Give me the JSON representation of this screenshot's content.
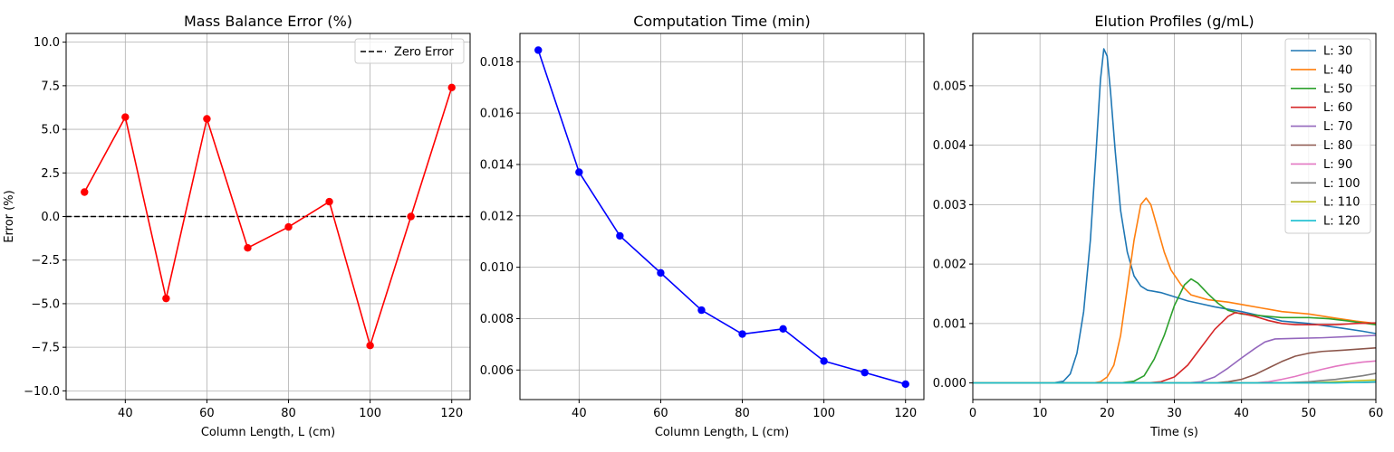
{
  "chart_data": [
    {
      "type": "line",
      "title": "Mass Balance Error (%)",
      "xlabel": "Column Length, L (cm)",
      "ylabel": "Error (%)",
      "xlim": [
        25.5,
        124.5
      ],
      "ylim": [
        -10.5,
        10.5
      ],
      "xticks": [
        40,
        60,
        80,
        100,
        120
      ],
      "yticks": [
        -10.0,
        -7.5,
        -5.0,
        -2.5,
        0.0,
        2.5,
        5.0,
        7.5,
        10.0
      ],
      "ytick_labels": [
        "−10.0",
        "−7.5",
        "−5.0",
        "−2.5",
        "0.0",
        "2.5",
        "5.0",
        "7.5",
        "10.0"
      ],
      "grid": true,
      "legend": "top-right",
      "x": [
        30,
        40,
        50,
        60,
        70,
        80,
        90,
        100,
        110,
        120
      ],
      "series": [
        {
          "values": [
            1.4,
            5.7,
            -4.7,
            5.6,
            -1.8,
            -0.6,
            0.85,
            -7.4,
            0.0,
            7.4
          ],
          "color": "#ff0000",
          "marker": "circle"
        }
      ],
      "reference_lines": [
        {
          "name": "Zero Error",
          "y": 0,
          "style": "dashed",
          "color": "#000000"
        }
      ]
    },
    {
      "type": "line",
      "title": "Computation Time (min)",
      "xlabel": "Column Length, L (cm)",
      "ylabel": "",
      "xlim": [
        25.5,
        124.5
      ],
      "ylim": [
        0.00485,
        0.0191
      ],
      "xticks": [
        40,
        60,
        80,
        100,
        120
      ],
      "yticks": [
        0.006,
        0.008,
        0.01,
        0.012,
        0.014,
        0.016,
        0.018
      ],
      "ytick_labels": [
        "0.006",
        "0.008",
        "0.010",
        "0.012",
        "0.014",
        "0.016",
        "0.018"
      ],
      "grid": true,
      "x": [
        30,
        40,
        50,
        60,
        70,
        80,
        90,
        100,
        110,
        120
      ],
      "series": [
        {
          "values": [
            0.01845,
            0.0137,
            0.01122,
            0.00978,
            0.00833,
            0.0074,
            0.0076,
            0.00635,
            0.0059,
            0.00545
          ],
          "color": "#0000ff",
          "marker": "circle"
        }
      ]
    },
    {
      "type": "line",
      "title": "Elution Profiles (g/mL)",
      "xlabel": "Time (s)",
      "ylabel": "",
      "xlim": [
        0,
        60
      ],
      "ylim": [
        -0.00028,
        0.00588
      ],
      "xticks": [
        0,
        10,
        20,
        30,
        40,
        50,
        60
      ],
      "yticks": [
        0.0,
        0.001,
        0.002,
        0.003,
        0.004,
        0.005
      ],
      "ytick_labels": [
        "0.000",
        "0.001",
        "0.002",
        "0.003",
        "0.004",
        "0.005"
      ],
      "grid": true,
      "legend": "top-right",
      "series": [
        {
          "name": "L: 30",
          "color": "#1f77b4",
          "points": [
            [
              0,
              0
            ],
            [
              12,
              0
            ],
            [
              13.5,
              3e-05
            ],
            [
              14.5,
              0.00015
            ],
            [
              15.5,
              0.0005
            ],
            [
              16.5,
              0.0012
            ],
            [
              17.5,
              0.0024
            ],
            [
              18.3,
              0.0038
            ],
            [
              19,
              0.0051
            ],
            [
              19.5,
              0.00562
            ],
            [
              20,
              0.0055
            ],
            [
              20.5,
              0.0049
            ],
            [
              21.2,
              0.0039
            ],
            [
              22,
              0.0029
            ],
            [
              23,
              0.0022
            ],
            [
              24,
              0.0018
            ],
            [
              25,
              0.00163
            ],
            [
              26,
              0.00156
            ],
            [
              28,
              0.00152
            ],
            [
              30,
              0.00145
            ],
            [
              32,
              0.00138
            ],
            [
              34,
              0.00133
            ],
            [
              36,
              0.00128
            ],
            [
              38,
              0.00124
            ],
            [
              40,
              0.0012
            ],
            [
              42,
              0.00115
            ],
            [
              44,
              0.0011
            ],
            [
              46,
              0.00104
            ],
            [
              50,
              0.001
            ],
            [
              55,
              0.00092
            ],
            [
              58,
              0.00087
            ],
            [
              60,
              0.00083
            ]
          ]
        },
        {
          "name": "L: 40",
          "color": "#ff7f0e",
          "points": [
            [
              0,
              0
            ],
            [
              18,
              0
            ],
            [
              19,
              2e-05
            ],
            [
              20,
              0.0001
            ],
            [
              21,
              0.0003
            ],
            [
              22,
              0.0008
            ],
            [
              23,
              0.0016
            ],
            [
              24,
              0.0024
            ],
            [
              25,
              0.003
            ],
            [
              25.8,
              0.00311
            ],
            [
              26.5,
              0.003
            ],
            [
              27.5,
              0.0026
            ],
            [
              28.5,
              0.0022
            ],
            [
              29.5,
              0.0019
            ],
            [
              31,
              0.00165
            ],
            [
              32.5,
              0.00148
            ],
            [
              35,
              0.0014
            ],
            [
              38,
              0.00136
            ],
            [
              40,
              0.00132
            ],
            [
              43,
              0.00126
            ],
            [
              46,
              0.0012
            ],
            [
              50,
              0.00116
            ],
            [
              54,
              0.00109
            ],
            [
              57,
              0.00104
            ],
            [
              60,
              0.001
            ]
          ]
        },
        {
          "name": "L: 50",
          "color": "#2ca02c",
          "points": [
            [
              0,
              0
            ],
            [
              22,
              0
            ],
            [
              24,
              3e-05
            ],
            [
              25.5,
              0.00012
            ],
            [
              27,
              0.0004
            ],
            [
              28.5,
              0.0008
            ],
            [
              30,
              0.0013
            ],
            [
              31.5,
              0.00165
            ],
            [
              32.5,
              0.00175
            ],
            [
              33.5,
              0.00168
            ],
            [
              35,
              0.0015
            ],
            [
              36.5,
              0.00134
            ],
            [
              38,
              0.00122
            ],
            [
              40,
              0.00116
            ],
            [
              43,
              0.00113
            ],
            [
              46,
              0.0011
            ],
            [
              50,
              0.0011
            ],
            [
              53,
              0.00108
            ],
            [
              56,
              0.00104
            ],
            [
              60,
              0.00098
            ]
          ]
        },
        {
          "name": "L: 60",
          "color": "#d62728",
          "points": [
            [
              0,
              0
            ],
            [
              26,
              0
            ],
            [
              28,
              2e-05
            ],
            [
              30,
              0.0001
            ],
            [
              32,
              0.0003
            ],
            [
              34,
              0.0006
            ],
            [
              36,
              0.0009
            ],
            [
              38,
              0.00112
            ],
            [
              39,
              0.00118
            ],
            [
              40,
              0.00117
            ],
            [
              42,
              0.00112
            ],
            [
              44,
              0.00105
            ],
            [
              46,
              0.001
            ],
            [
              48,
              0.00098
            ],
            [
              50,
              0.00098
            ],
            [
              54,
              0.00098
            ],
            [
              57,
              0.001
            ],
            [
              60,
              0.00101
            ]
          ]
        },
        {
          "name": "L: 70",
          "color": "#9467bd",
          "points": [
            [
              0,
              0
            ],
            [
              32,
              0
            ],
            [
              34,
              2e-05
            ],
            [
              36,
              0.0001
            ],
            [
              38,
              0.00025
            ],
            [
              40,
              0.00042
            ],
            [
              42,
              0.00058
            ],
            [
              43.5,
              0.00069
            ],
            [
              45,
              0.00074
            ],
            [
              48,
              0.00075
            ],
            [
              52,
              0.00076
            ],
            [
              56,
              0.00078
            ],
            [
              60,
              0.0008
            ]
          ]
        },
        {
          "name": "L: 80",
          "color": "#8c564b",
          "points": [
            [
              0,
              0
            ],
            [
              36,
              0
            ],
            [
              38,
              2e-05
            ],
            [
              40,
              6e-05
            ],
            [
              42,
              0.00014
            ],
            [
              44,
              0.00025
            ],
            [
              46,
              0.00036
            ],
            [
              48,
              0.00045
            ],
            [
              50,
              0.0005
            ],
            [
              52,
              0.00053
            ],
            [
              55,
              0.00055
            ],
            [
              60,
              0.00059
            ]
          ]
        },
        {
          "name": "L: 90",
          "color": "#e377c2",
          "points": [
            [
              0,
              0
            ],
            [
              42,
              0
            ],
            [
              44,
              2e-05
            ],
            [
              46,
              6e-05
            ],
            [
              48,
              0.00011
            ],
            [
              50,
              0.00017
            ],
            [
              52,
              0.00023
            ],
            [
              54,
              0.00028
            ],
            [
              56,
              0.00032
            ],
            [
              58,
              0.00035
            ],
            [
              60,
              0.00037
            ]
          ]
        },
        {
          "name": "L: 100",
          "color": "#7f7f7f",
          "points": [
            [
              0,
              0
            ],
            [
              46,
              0
            ],
            [
              48,
              1e-05
            ],
            [
              50,
              2e-05
            ],
            [
              52,
              4e-05
            ],
            [
              54,
              6e-05
            ],
            [
              56,
              9e-05
            ],
            [
              58,
              0.00012
            ],
            [
              60,
              0.00016
            ]
          ]
        },
        {
          "name": "L: 110",
          "color": "#bcbd22",
          "points": [
            [
              0,
              0
            ],
            [
              50,
              0
            ],
            [
              52,
              1e-05
            ],
            [
              54,
              2e-05
            ],
            [
              56,
              3e-05
            ],
            [
              58,
              4e-05
            ],
            [
              60,
              5e-05
            ]
          ]
        },
        {
          "name": "L: 120",
          "color": "#17becf",
          "points": [
            [
              0,
              0
            ],
            [
              54,
              0
            ],
            [
              56,
              5e-06
            ],
            [
              58,
              1e-05
            ],
            [
              60,
              2e-05
            ]
          ]
        }
      ]
    }
  ]
}
